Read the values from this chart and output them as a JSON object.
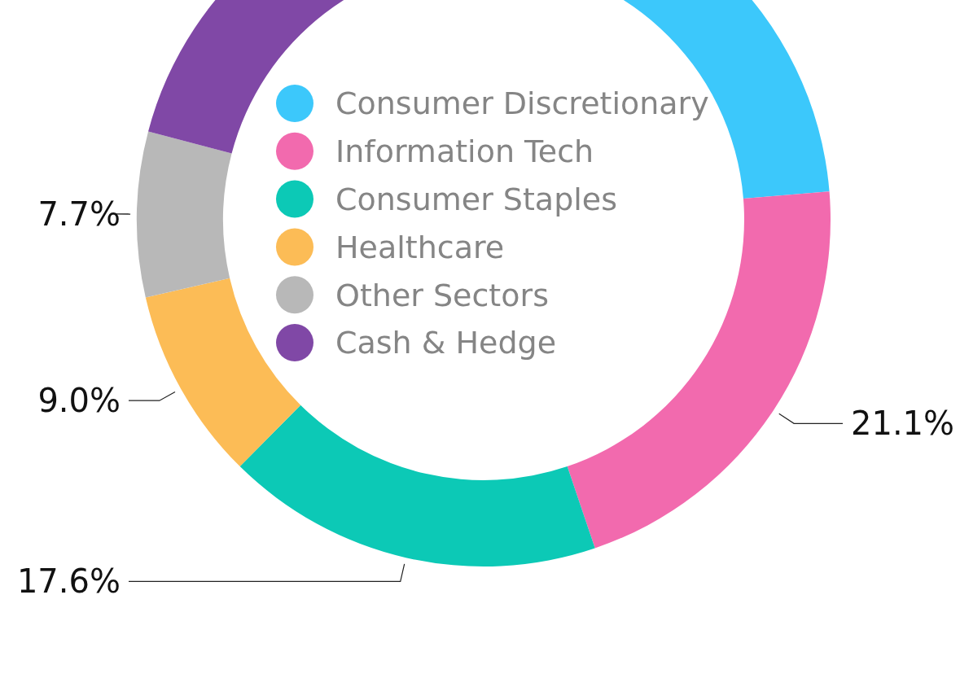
{
  "chart_data": {
    "type": "donut",
    "categories": [
      "Consumer Discretionary",
      "Information Tech",
      "Consumer Staples",
      "Healthcare",
      "Other Sectors",
      "Cash & Hedge"
    ],
    "values": [
      23.7,
      21.1,
      17.6,
      9.0,
      7.7,
      20.9
    ],
    "colors": [
      "#3cc8fb",
      "#f26aae",
      "#0cc9b6",
      "#fcbc56",
      "#b8b8b8",
      "#8048a6"
    ],
    "value_labels": [
      null,
      "21.1%",
      "17.6%",
      "9.0%",
      "7.7%",
      null
    ],
    "legend": "center"
  }
}
